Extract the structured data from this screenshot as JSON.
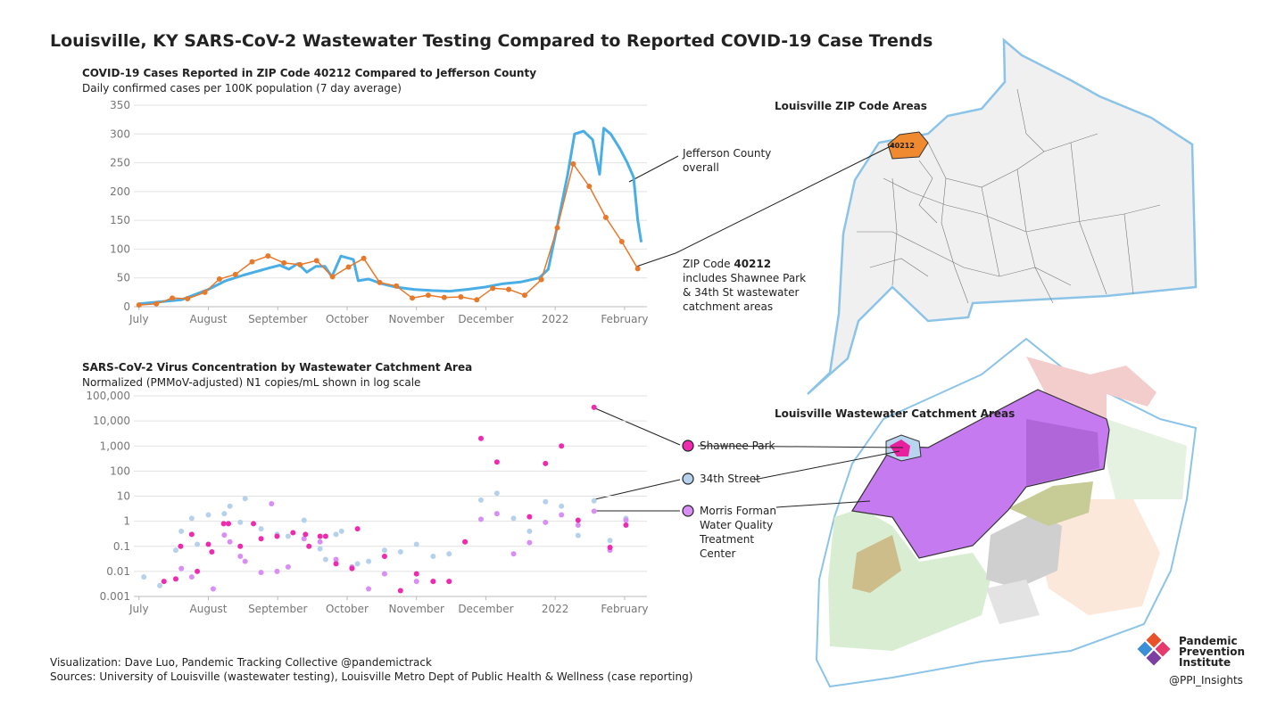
{
  "title": "Louisville, KY SARS-CoV-2 Wastewater Testing Compared to Reported COVID-19 Case Trends",
  "chart_data": [
    {
      "type": "line",
      "title": "COVID-19 Cases Reported in ZIP Code 40212 Compared to Jefferson County",
      "subtitle": "Daily confirmed cases per 100K population (7 day average)",
      "xlim": [
        -0.1,
        7.4
      ],
      "xticks": [
        {
          "value": 0,
          "label": "July"
        },
        {
          "value": 1,
          "label": "August"
        },
        {
          "value": 2,
          "label": "September"
        },
        {
          "value": 3,
          "label": "October"
        },
        {
          "value": 4,
          "label": "November"
        },
        {
          "value": 5,
          "label": "December"
        },
        {
          "value": 6,
          "label": "2022"
        },
        {
          "value": 7,
          "label": "February"
        }
      ],
      "ylim": [
        0,
        350
      ],
      "yticks": [
        0,
        50,
        100,
        150,
        200,
        250,
        300,
        350
      ],
      "grid": true,
      "series": [
        {
          "name": "Jefferson County overall",
          "color": "#4aaee6",
          "x": [
            0,
            0.61,
            1.0,
            1.25,
            1.51,
            1.9,
            2.03,
            2.16,
            2.29,
            2.42,
            2.55,
            2.68,
            2.78,
            2.91,
            3.09,
            3.16,
            3.31,
            3.5,
            3.7,
            3.96,
            4.22,
            4.48,
            4.73,
            4.99,
            5.25,
            5.51,
            5.77,
            5.9,
            6.03,
            6.18,
            6.28,
            6.41,
            6.54,
            6.64,
            6.7,
            6.8,
            6.93,
            7.04,
            7.13,
            7.19,
            7.24
          ],
          "values": [
            5,
            12,
            30,
            45,
            55,
            68,
            72,
            65,
            75,
            60,
            70,
            70,
            52,
            88,
            82,
            45,
            48,
            40,
            34,
            30,
            28,
            27,
            30,
            34,
            40,
            43,
            50,
            65,
            140,
            230,
            300,
            305,
            290,
            230,
            310,
            300,
            275,
            250,
            225,
            150,
            112
          ]
        },
        {
          "color": "#e8782a",
          "x": [
            0,
            0.25,
            0.48,
            0.7,
            0.95,
            1.16,
            1.39,
            1.63,
            1.86,
            2.09,
            2.32,
            2.56,
            2.79,
            3.02,
            3.24,
            3.47,
            3.71,
            3.94,
            4.17,
            4.4,
            4.64,
            4.87,
            5.1,
            5.33,
            5.56,
            5.8,
            6.03,
            6.26,
            6.49,
            6.73,
            6.96,
            7.19
          ],
          "values": [
            3,
            5,
            15,
            14,
            25,
            48,
            56,
            78,
            88,
            76,
            73,
            80,
            52,
            69,
            84,
            42,
            36,
            15,
            20,
            16,
            17,
            12,
            32,
            30,
            20,
            47,
            137,
            248,
            209,
            155,
            113,
            66
          ]
        }
      ],
      "annotation": [
        "ZIP Code",
        "40212",
        "includes Shawnee Park & 34th St wastewater catchment areas"
      ]
    },
    {
      "type": "scatter",
      "title": "SARS-CoV-2 Virus Concentration by Wastewater Catchment Area",
      "subtitle": "Normalized (PMMoV-adjusted) N1 copies/mL shown in log scale",
      "log_y": true,
      "xlim": [
        -0.1,
        7.4
      ],
      "xticks": [
        {
          "value": 0,
          "label": "July"
        },
        {
          "value": 1,
          "label": "August"
        },
        {
          "value": 2,
          "label": "September"
        },
        {
          "value": 3,
          "label": "October"
        },
        {
          "value": 4,
          "label": "November"
        },
        {
          "value": 5,
          "label": "December"
        },
        {
          "value": 6,
          "label": "2022"
        },
        {
          "value": 7,
          "label": "February"
        }
      ],
      "ylim": [
        0.001,
        100000
      ],
      "yticks": [
        0.001,
        0.01,
        0.1,
        1,
        10,
        100,
        {
          "value": 1000,
          "label": "1,000"
        },
        {
          "value": 10000,
          "label": "10,000"
        },
        {
          "value": 100000,
          "label": "100,000"
        }
      ],
      "grid": true,
      "series": [
        {
          "name": "34th Street",
          "color": "#b6d1ec",
          "x": [
            0.07,
            0.3,
            0.53,
            0.61,
            0.76,
            0.84,
            1.0,
            1.23,
            1.31,
            1.46,
            1.53,
            1.76,
            1.99,
            2.15,
            2.38,
            2.61,
            2.69,
            2.84,
            2.92,
            3.15,
            3.31,
            3.54,
            3.77,
            4.0,
            4.24,
            4.47,
            4.7,
            4.93,
            5.16,
            5.4,
            5.63,
            5.86,
            6.09,
            6.33,
            6.56,
            6.79,
            7.02
          ],
          "values": [
            0.006,
            0.0027,
            0.07,
            0.4,
            1.3,
            0.12,
            1.8,
            2,
            4,
            0.9,
            8,
            0.5,
            0.3,
            0.25,
            1.1,
            0.08,
            0.03,
            0.3,
            0.4,
            0.02,
            0.025,
            0.07,
            0.06,
            0.12,
            0.04,
            0.05,
            0.15,
            7,
            13,
            1.3,
            0.4,
            6,
            4,
            0.27,
            6.5,
            0.17,
            1.3
          ]
        },
        {
          "name": "Morris Forman Water Quality Treatment Center",
          "color": "#d88ef2",
          "x": [
            0.61,
            0.76,
            1.07,
            1.23,
            1.31,
            1.46,
            1.53,
            1.76,
            1.91,
            1.99,
            2.15,
            2.38,
            2.61,
            2.84,
            3.07,
            3.31,
            3.54,
            4.0,
            4.24,
            4.47,
            4.7,
            4.93,
            5.16,
            5.4,
            5.63,
            5.86,
            6.09,
            6.33,
            6.56,
            6.79,
            7.02
          ],
          "values": [
            0.013,
            0.006,
            0.002,
            0.28,
            0.15,
            0.04,
            0.025,
            0.009,
            5,
            0.01,
            0.015,
            0.2,
            0.15,
            0.03,
            0.015,
            0.002,
            0.008,
            0.004,
            0.004,
            0.004,
            0.15,
            1.2,
            2,
            0.05,
            0.14,
            0.9,
            1.8,
            0.7,
            2.5,
            0.07,
            1.1
          ]
        },
        {
          "name": "Shawnee Park",
          "color": "#ee2aae",
          "x": [
            0.36,
            0.53,
            0.6,
            0.76,
            0.84,
            1.0,
            1.05,
            1.22,
            1.29,
            1.46,
            1.65,
            1.76,
            1.99,
            2.22,
            2.4,
            2.45,
            2.61,
            2.69,
            2.84,
            3.07,
            3.15,
            3.54,
            3.77,
            4.0,
            4.24,
            4.47,
            4.7,
            4.93,
            5.16,
            5.63,
            5.86,
            6.09,
            6.33,
            6.56,
            6.79,
            7.02
          ],
          "values": [
            0.004,
            0.005,
            0.1,
            0.3,
            0.01,
            0.12,
            0.06,
            0.8,
            0.8,
            0.1,
            0.8,
            0.2,
            0.25,
            0.35,
            0.3,
            0.1,
            0.25,
            0.25,
            0.02,
            0.013,
            0.5,
            0.04,
            0.0017,
            0.008,
            0.004,
            0.004,
            0.15,
            2000,
            230,
            1.5,
            200,
            1000,
            1.1,
            35000,
            0.09,
            0.7
          ]
        }
      ]
    }
  ],
  "zip_map": {
    "title": "Louisville ZIP Code Areas",
    "label": "40212"
  },
  "catchment_map": {
    "title": "Louisville Wastewater Catchment Areas"
  },
  "footer": [
    "Visualization: Dave Luo, Pandemic Tracking Collective @pandemictrack",
    "Sources: University of Louisville (wastewater testing), Louisville Metro Dept of Public Health & Wellness (case reporting)"
  ],
  "logo": {
    "name": [
      "Pandemic",
      "Prevention",
      "Institute"
    ],
    "handle": "@PPI_Insights"
  }
}
